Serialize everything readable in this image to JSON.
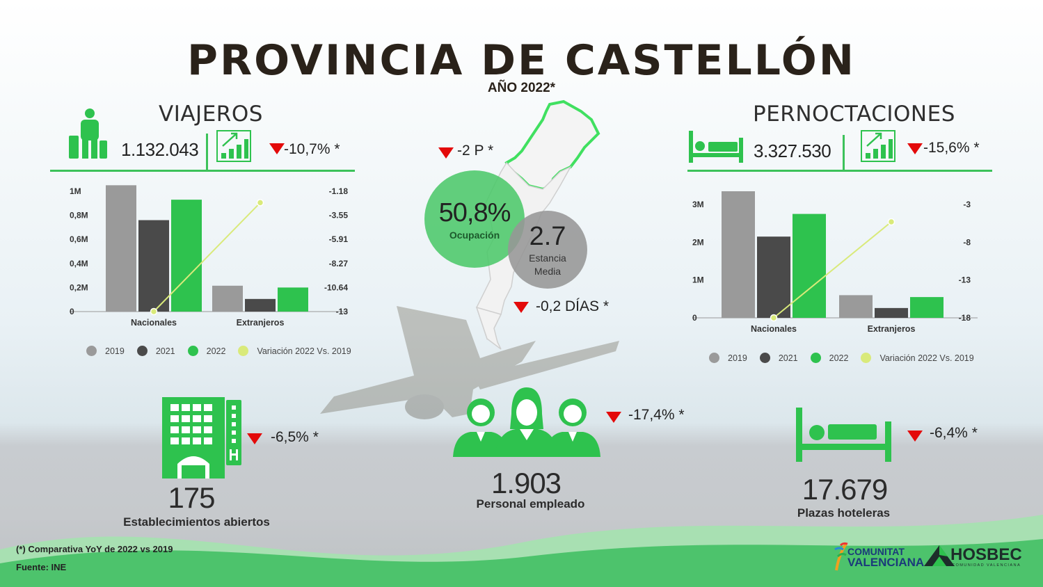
{
  "header": {
    "title": "PROVINCIA DE CASTELLÓN",
    "subtitle": "AÑO 2022*"
  },
  "viajeros": {
    "heading": "VIAJEROS",
    "total": "1.132.043",
    "variation": "-10,7% *"
  },
  "pernoctaciones": {
    "heading": "PERNOCTACIONES",
    "total": "3.327.530",
    "variation": "-15,6% *"
  },
  "center": {
    "occupancy_value": "50,8%",
    "occupancy_label": "Ocupación",
    "occupancy_variation": "-2 P *",
    "stay_value": "2.7",
    "stay_label": "Estancia Media",
    "stay_variation": "-0,2 DÍAS *"
  },
  "bottom": {
    "establishments": {
      "value": "175",
      "label": "Establecimientos abiertos",
      "variation": "-6,5% *"
    },
    "staff": {
      "value": "1.903",
      "label": "Personal empleado",
      "variation": "-17,4% *"
    },
    "beds": {
      "value": "17.679",
      "label": "Plazas hoteleras",
      "variation": "-6,4% *"
    }
  },
  "footnote": {
    "line1": "(*) Comparativa YoY de 2022 vs 2019",
    "line2": "Fuente: INE"
  },
  "logos": {
    "cv_line1": "COMUNITAT",
    "cv_line2": "VALENCIANA",
    "hosbec": "HOSBEC",
    "hosbec_sub": "COMUNIDAD VALENCIANA"
  },
  "colors": {
    "s2019": "#9a9a9a",
    "s2021": "#4a4a4a",
    "s2022": "#2ec24e",
    "variation": "#d9ea7a",
    "accent": "#3cc25a",
    "down": "#e30a0a"
  },
  "chart_data": [
    {
      "type": "bar",
      "categories": [
        "Nacionales",
        "Extranjeros"
      ],
      "series": [
        {
          "name": "2019",
          "values": [
            1050000,
            215000
          ]
        },
        {
          "name": "2021",
          "values": [
            760000,
            105000
          ]
        },
        {
          "name": "2022",
          "values": [
            930000,
            200000
          ]
        }
      ],
      "line_series": {
        "name": "Variación 2022 Vs. 2019",
        "values": [
          -13,
          -2.3
        ],
        "axis": "right"
      },
      "left_ticks": [
        "1M",
        "0,8M",
        "0,6M",
        "0,4M",
        "0,2M",
        "0"
      ],
      "right_ticks": [
        "-1.18",
        "-3.55",
        "-5.91",
        "-8.27",
        "-10.64",
        "-13"
      ],
      "ylim": [
        0,
        1000000
      ],
      "y2lim": [
        -13,
        -1.18
      ],
      "legend": "bottom"
    },
    {
      "type": "bar",
      "categories": [
        "Nacionales",
        "Extranjeros"
      ],
      "series": [
        {
          "name": "2019",
          "values": [
            3350000,
            600000
          ]
        },
        {
          "name": "2021",
          "values": [
            2150000,
            260000
          ]
        },
        {
          "name": "2022",
          "values": [
            2750000,
            550000
          ]
        }
      ],
      "line_series": {
        "name": "Variación 2022 Vs. 2019",
        "values": [
          -18,
          -5.3
        ],
        "axis": "right"
      },
      "left_ticks": [
        "3M",
        "2M",
        "1M",
        "0"
      ],
      "right_ticks": [
        "-3",
        "-8",
        "-13",
        "-18"
      ],
      "ylim": [
        0,
        3000000
      ],
      "y2lim": [
        -18,
        -3
      ],
      "legend": "bottom"
    }
  ]
}
